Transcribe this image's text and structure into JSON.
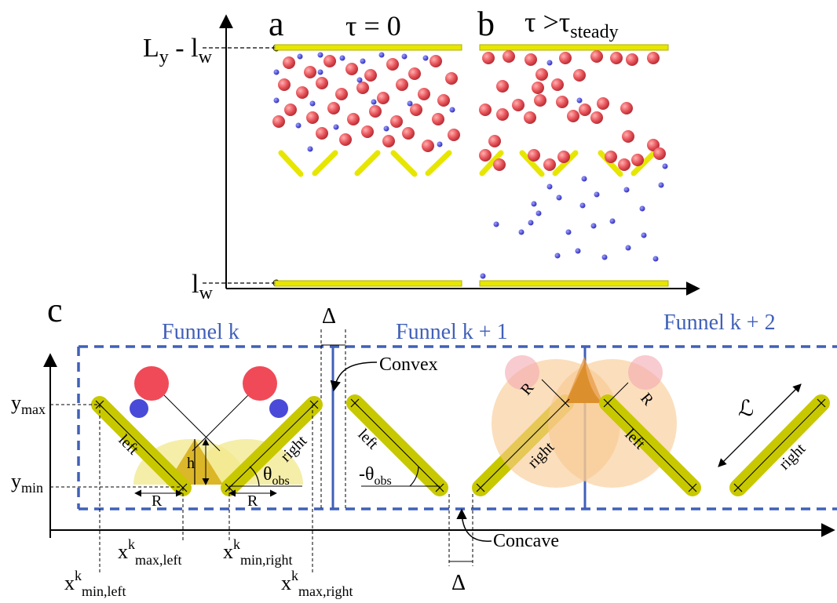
{
  "panels": {
    "a": {
      "letter": "a",
      "title": "τ = 0"
    },
    "b": {
      "letter": "b",
      "title_main": "τ >τ",
      "title_sub": "steady"
    },
    "c": {
      "letter": "c"
    }
  },
  "axis_labels": {
    "ly_main": "L",
    "ly_sub": "y",
    "ly_minus": " - l",
    "ly_w": "w",
    "lw_main": "l",
    "lw_sub": "w"
  },
  "funnels": [
    "Funnel k",
    "Funnel k + 1",
    "Funnel k + 2"
  ],
  "annotations": {
    "delta": "Δ",
    "convex": "Convex",
    "concave": "Concave",
    "left": "left",
    "right": "right",
    "h": "h",
    "R": "R",
    "theta": "θ",
    "theta_sub": "obs",
    "neg_theta": "-θ",
    "L_script": "ℒ"
  },
  "y_labels": {
    "ymax": "y",
    "ymax_sub": "max",
    "ymin": "y",
    "ymin_sub": "min"
  },
  "x_labels": {
    "x": "x",
    "k": "k",
    "max_left": "max,left",
    "min_right": "min,right",
    "min_left": "min,left",
    "max_right": "max,right"
  },
  "colors": {
    "wall": "#e6e600",
    "red_particle": "#e8545a",
    "blue_particle": "#4a4ad8",
    "funnel_box": "#4060b8",
    "obstacle": "#c8c800"
  }
}
